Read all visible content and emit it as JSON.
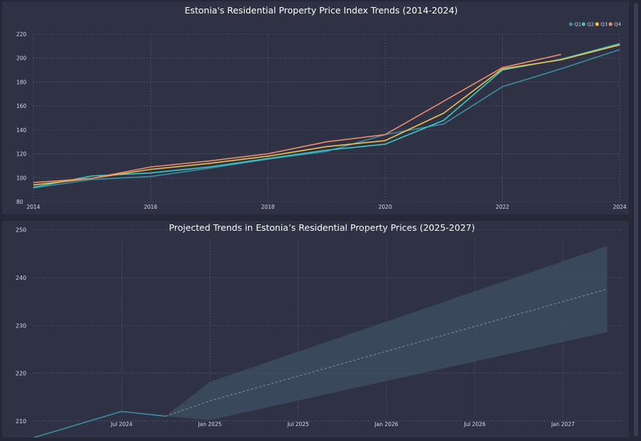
{
  "colors": {
    "background": "#262837",
    "panel": "#2f3245",
    "grid": "#5a5e75",
    "Q1": "#3d8ea3",
    "Q2": "#3ec9c0",
    "Q3": "#f1c04f",
    "Q4": "#ee8c6e",
    "forecast_band": "#3d5163",
    "forecast_line": "#8793a3",
    "history_line": "#3d8ea3"
  },
  "chart_data": [
    {
      "type": "line",
      "title": "Estonia's Residential Property Price Index Trends (2014-2024)",
      "xlabel": "",
      "ylabel": "",
      "x": [
        2014,
        2015,
        2016,
        2017,
        2018,
        2019,
        2020,
        2021,
        2022,
        2023,
        2024
      ],
      "xlim": [
        2014,
        2024
      ],
      "ylim": [
        80,
        220
      ],
      "x_ticks": [
        2014,
        2016,
        2018,
        2020,
        2022,
        2024
      ],
      "y_ticks": [
        80,
        100,
        120,
        140,
        160,
        180,
        200,
        220
      ],
      "grid": true,
      "legend_position": "top-right",
      "series": [
        {
          "name": "Q1",
          "color_key": "Q1",
          "values": [
            91.5,
            98.5,
            101,
            108,
            115.5,
            122,
            136,
            145,
            176,
            191,
            207
          ]
        },
        {
          "name": "Q2",
          "color_key": "Q2",
          "values": [
            92,
            101.5,
            104,
            109,
            116,
            123,
            128,
            148,
            190,
            199,
            212
          ]
        },
        {
          "name": "Q3",
          "color_key": "Q3",
          "values": [
            94,
            99.5,
            107,
            112,
            118,
            126,
            131,
            154,
            191,
            198.5,
            211
          ]
        },
        {
          "name": "Q4",
          "color_key": "Q4",
          "values": [
            96,
            99.5,
            109,
            114,
            120,
            130,
            136,
            164,
            192,
            203,
            null
          ]
        }
      ]
    },
    {
      "type": "area",
      "title": "Projected Trends in Estonia’s Residential Property Prices (2025-2027)",
      "xlabel": "",
      "ylabel": "",
      "x_ticks": [
        "Jul 2024",
        "Jan 2025",
        "Jul 2025",
        "Jan 2026",
        "Jul 2026",
        "Jan 2027"
      ],
      "y_ticks": [
        210,
        220,
        230,
        240,
        250
      ],
      "ylim": [
        207,
        251
      ],
      "xlim": [
        "2024-01",
        "2027-05"
      ],
      "grid": true,
      "history": {
        "x": [
          "2024-01",
          "2024-07",
          "2024-10"
        ],
        "values": [
          206.5,
          212,
          211
        ]
      },
      "forecast": {
        "x": [
          "2024-10",
          "2025-01",
          "2027-04"
        ],
        "mean": [
          211,
          214.2,
          237.6
        ],
        "upper": [
          211,
          218.2,
          246.6
        ],
        "lower": [
          211,
          210.2,
          228.6
        ]
      }
    }
  ]
}
